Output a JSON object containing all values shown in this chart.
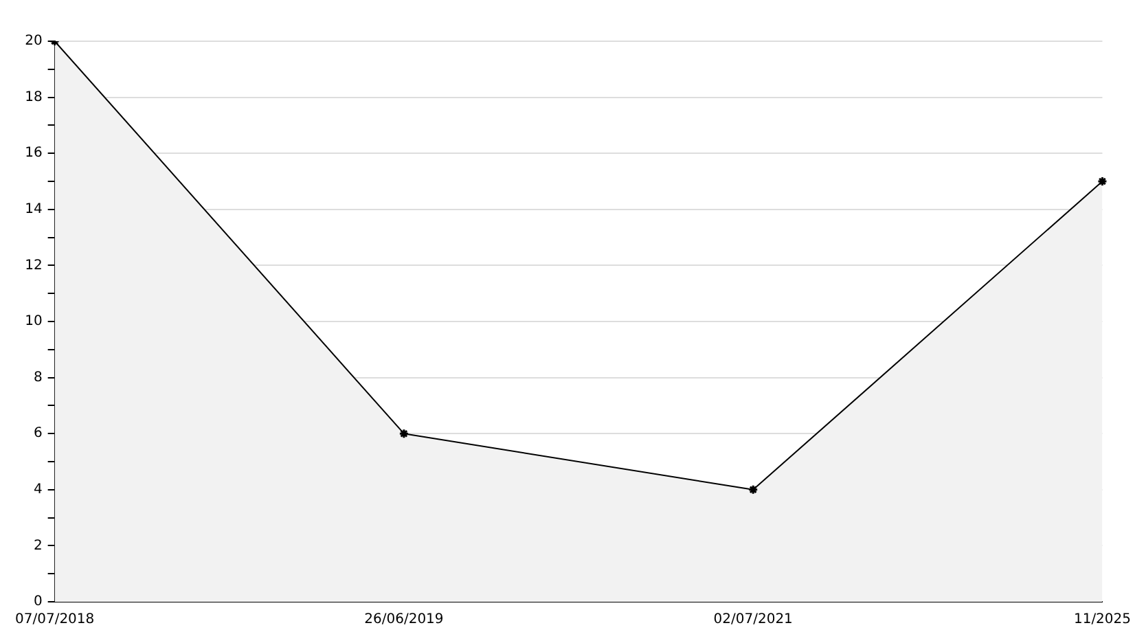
{
  "chart_data": {
    "type": "area",
    "categories": [
      "07/07/2018",
      "26/06/2019",
      "02/07/2021",
      "11/2025"
    ],
    "series": [
      {
        "color": "#000000",
        "values": [
          20,
          6,
          4,
          15
        ]
      }
    ],
    "ylim": [
      0,
      20
    ],
    "yticks": [
      0,
      {
        "value": 1,
        "label": null
      },
      2,
      {
        "value": 3,
        "label": null
      },
      4,
      {
        "value": 5,
        "label": null
      },
      6,
      {
        "value": 7,
        "label": null
      },
      8,
      {
        "value": 9,
        "label": null
      },
      10,
      {
        "value": 11,
        "label": null
      },
      12,
      {
        "value": 13,
        "label": null
      },
      14,
      {
        "value": 15,
        "label": null
      },
      16,
      {
        "value": 17,
        "label": null
      },
      18,
      {
        "value": 19,
        "label": null
      },
      20
    ],
    "grid": "y",
    "legend": false,
    "marker": "cross",
    "line_style": "solid"
  }
}
